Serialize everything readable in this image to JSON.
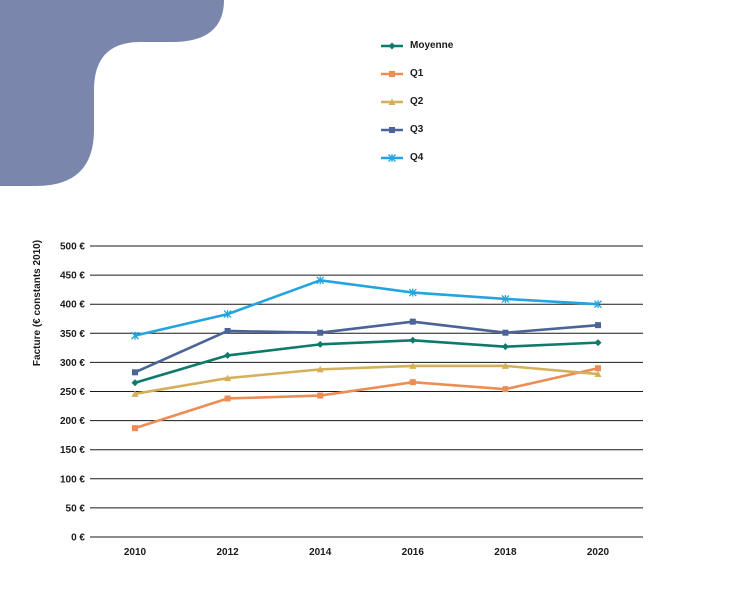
{
  "colors": {
    "decoration": "#7a86ab",
    "grid": "#1a1a1a"
  },
  "chart_data": {
    "type": "line",
    "title": "",
    "xlabel": "",
    "ylabel": "Facture (€ constants 2010)",
    "x": [
      2010,
      2012,
      2014,
      2016,
      2018,
      2020
    ],
    "x_tick_labels": [
      "2010",
      "2012",
      "2014",
      "2016",
      "2018",
      "2020"
    ],
    "ylim": [
      0,
      500
    ],
    "y_ticks": [
      0,
      50,
      100,
      150,
      200,
      250,
      300,
      350,
      400,
      450,
      500
    ],
    "y_tick_labels": [
      "0 €",
      "50 €",
      "100 €",
      "150 €",
      "200 €",
      "250 €",
      "300 €",
      "350 €",
      "400 €",
      "450 €",
      "500 €"
    ],
    "grid": true,
    "legend_position": "top",
    "series": [
      {
        "name": "Moyenne",
        "color": "#0f7a6c",
        "marker": "diamond",
        "values": [
          265,
          312,
          331,
          338,
          327,
          334
        ]
      },
      {
        "name": "Q1",
        "color": "#ec8d55",
        "marker": "square",
        "values": [
          187,
          238,
          243,
          266,
          254,
          290
        ]
      },
      {
        "name": "Q2",
        "color": "#d4b05a",
        "marker": "triangle",
        "values": [
          246,
          273,
          288,
          294,
          294,
          280
        ]
      },
      {
        "name": "Q3",
        "color": "#4a6497",
        "marker": "square",
        "values": [
          283,
          354,
          351,
          370,
          351,
          364
        ]
      },
      {
        "name": "Q4",
        "color": "#24a4df",
        "marker": "star",
        "values": [
          346,
          383,
          441,
          420,
          409,
          400
        ]
      }
    ]
  }
}
